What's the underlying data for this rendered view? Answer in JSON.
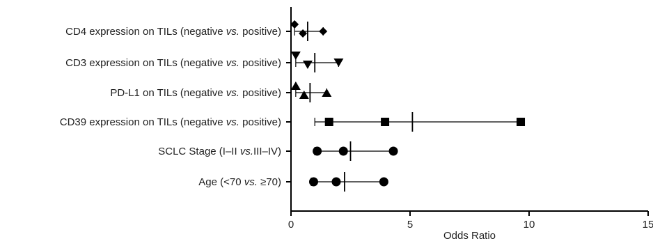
{
  "chart_data": {
    "type": "scatter",
    "subtype": "forest-plot",
    "title": "",
    "xlabel": "Odds Ratio",
    "ylabel": "",
    "xlim": [
      0,
      15
    ],
    "xticks": [
      0,
      5,
      10,
      15
    ],
    "grid": false,
    "legend": "none",
    "marker_color": "#000000",
    "rows": [
      {
        "label_parts": [
          {
            "t": "CD4 expression on TILs (negative ",
            "i": false
          },
          {
            "t": "vs.",
            "i": true
          },
          {
            "t": " positive)",
            "i": false
          }
        ],
        "marker": "diamond",
        "point_top": 0.15,
        "point_bottom": 0.5,
        "estimate": 0.7,
        "ci": [
          0.15,
          1.35
        ]
      },
      {
        "label_parts": [
          {
            "t": "CD3 expression on TILs (negative ",
            "i": false
          },
          {
            "t": "vs.",
            "i": true
          },
          {
            "t": " positive)",
            "i": false
          }
        ],
        "marker": "triangle-down",
        "point_top": 0.2,
        "point_bottom": 0.7,
        "estimate": 1.0,
        "ci": [
          0.2,
          2.0
        ]
      },
      {
        "label_parts": [
          {
            "t": "PD-L1 on TILs (negative ",
            "i": false
          },
          {
            "t": "vs.",
            "i": true
          },
          {
            "t": " positive)",
            "i": false
          }
        ],
        "marker": "triangle-up",
        "point_top": 0.2,
        "point_bottom": 0.55,
        "estimate": 0.8,
        "ci": [
          0.2,
          1.5
        ]
      },
      {
        "label_parts": [
          {
            "t": "CD39 expression on TILs (negative ",
            "i": false
          },
          {
            "t": "vs.",
            "i": true
          },
          {
            "t": " positive)",
            "i": false
          }
        ],
        "marker": "square",
        "point_left": 1.6,
        "point_mid": 3.95,
        "estimate": 5.1,
        "ci": [
          1.0,
          9.65
        ]
      },
      {
        "label_parts": [
          {
            "t": "SCLC Stage (I–II ",
            "i": false
          },
          {
            "t": "vs.",
            "i": true
          },
          {
            "t": "III–IV)",
            "i": false
          }
        ],
        "marker": "circle",
        "point_left": 1.1,
        "point_mid": 2.2,
        "estimate": 2.5,
        "ci": [
          1.0,
          4.3
        ]
      },
      {
        "label_parts": [
          {
            "t": "Age (<70 ",
            "i": false
          },
          {
            "t": "vs.",
            "i": true
          },
          {
            "t": " ≥70)",
            "i": false
          }
        ],
        "marker": "circle",
        "point_left": 0.95,
        "point_mid": 1.9,
        "estimate": 2.25,
        "ci": [
          0.85,
          3.9
        ]
      }
    ]
  }
}
